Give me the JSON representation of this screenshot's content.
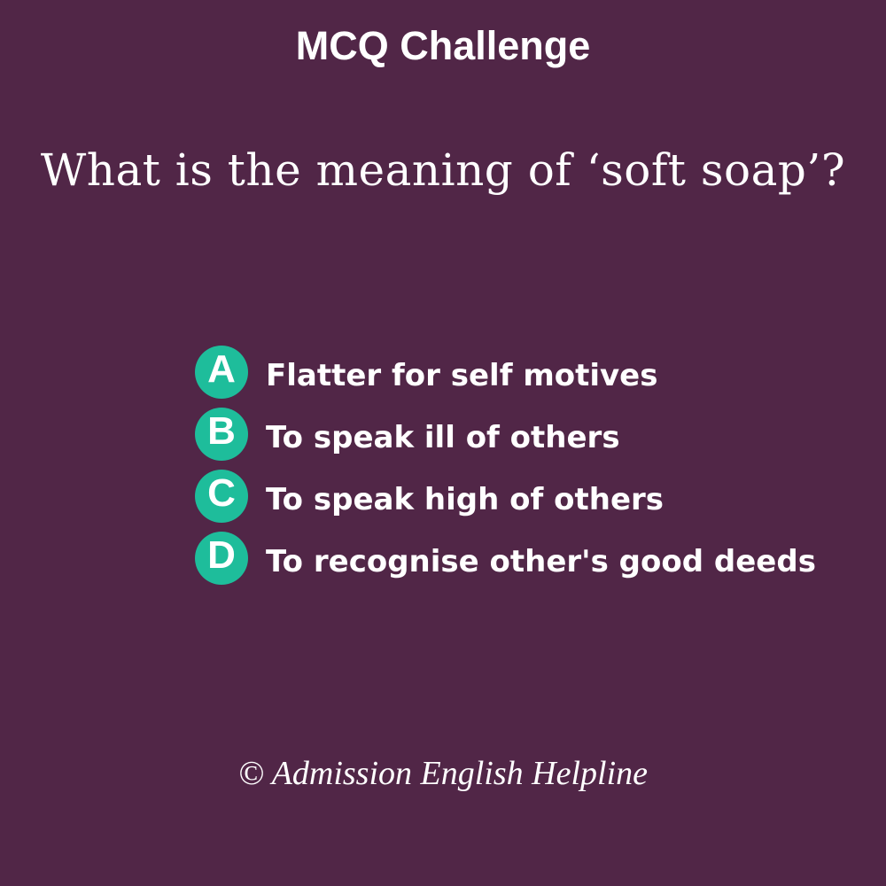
{
  "header": {
    "title": "MCQ Challenge"
  },
  "question": {
    "text": "What is the meaning of ‘soft soap’?"
  },
  "options": [
    {
      "letter": "A",
      "text": "Flatter for self motives"
    },
    {
      "letter": "B",
      "text": "To speak ill of others"
    },
    {
      "letter": "C",
      "text": "To speak high of others"
    },
    {
      "letter": "D",
      "text": "To recognise other's good deeds"
    }
  ],
  "footer": {
    "credit": "© Admission English Helpline"
  },
  "colors": {
    "background": "#512647",
    "badge": "#1ebd9b",
    "text": "#ffffff"
  }
}
